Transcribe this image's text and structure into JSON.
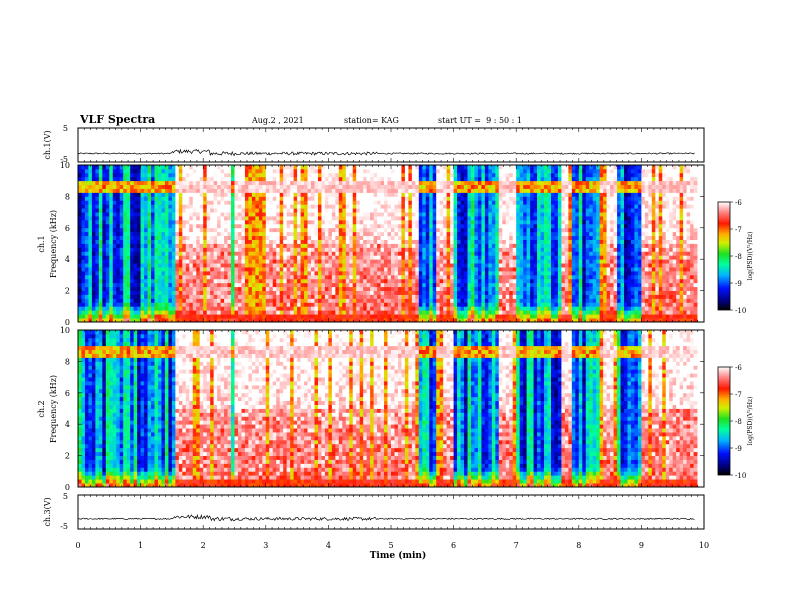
{
  "chart_data": {
    "type": "heatmap",
    "title": "VLF Spectra",
    "header": {
      "date": "Aug.2 , 2021",
      "station": "station= KAG",
      "start_ut": "start UT =  9 : 50 : 1"
    },
    "x_axis": {
      "label": "Time (min)",
      "range": [
        0,
        10
      ],
      "ticks": [
        "0",
        "1",
        "2",
        "3",
        "4",
        "5",
        "6",
        "7",
        "8",
        "9",
        "10"
      ]
    },
    "panels": [
      {
        "id": "ch1-waveform",
        "type": "line",
        "ylabel": "ch.1(V)",
        "ylim": [
          -5,
          5
        ],
        "yticks": [
          "5",
          "-5"
        ],
        "baseline": -2.5,
        "noisy_interval_min": [
          1.5,
          4.8
        ]
      },
      {
        "id": "ch1-spectrogram",
        "type": "heatmap",
        "ylabel_line1": "ch.1",
        "ylabel_line2": "Frequency (kHz)",
        "ylim": [
          0,
          10
        ],
        "yticks": [
          "0",
          "2",
          "4",
          "6",
          "8",
          "10"
        ],
        "colorbar": {
          "label": "log(PSD)(V²/Hz)",
          "range": [
            -10,
            -6
          ],
          "ticks": [
            "-6",
            "-7",
            "-8",
            "-9",
            "-10"
          ]
        }
      },
      {
        "id": "ch2-spectrogram",
        "type": "heatmap",
        "ylabel_line1": "ch.2",
        "ylabel_line2": "Frequency (kHz)",
        "ylim": [
          0,
          10
        ],
        "yticks": [
          "0",
          "2",
          "4",
          "6",
          "8",
          "10"
        ],
        "colorbar": {
          "label": "log(PSD)(V²/Hz)",
          "range": [
            -10,
            -6
          ],
          "ticks": [
            "-6",
            "-7",
            "-8",
            "-9",
            "-10"
          ]
        }
      },
      {
        "id": "ch3-waveform",
        "type": "line",
        "ylabel": "ch.3(V)",
        "ylim": [
          -5,
          5
        ],
        "yticks": [
          "5",
          "-5"
        ],
        "baseline": -2.0,
        "noisy_interval_min": [
          1.5,
          4.8
        ]
      }
    ],
    "spectral_features": {
      "narrowband_line_khz": 8.6,
      "quiet_dark_intervals_min": [
        [
          0.0,
          1.55
        ],
        [
          2.4,
          2.5
        ],
        [
          5.4,
          5.7
        ],
        [
          5.95,
          6.7
        ],
        [
          6.95,
          7.7
        ],
        [
          7.85,
          8.3
        ],
        [
          8.6,
          9.0
        ]
      ],
      "broadband_noisy_intervals_min": [
        [
          1.55,
          2.4
        ],
        [
          2.5,
          5.4
        ],
        [
          5.7,
          5.95
        ],
        [
          6.7,
          6.95
        ],
        [
          7.7,
          7.85
        ],
        [
          8.3,
          8.6
        ],
        [
          9.0,
          9.85
        ]
      ]
    }
  }
}
